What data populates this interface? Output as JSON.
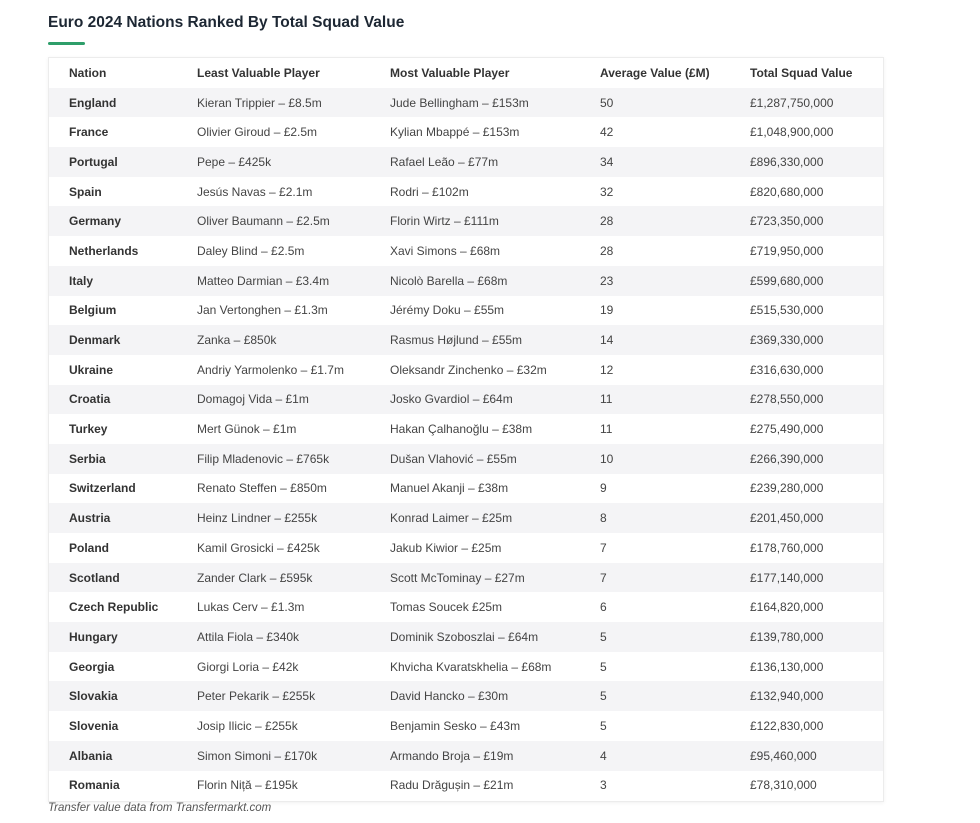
{
  "title": "Euro 2024 Nations Ranked By Total Squad Value",
  "accent_color": "#2e9e6a",
  "columns": [
    "Nation",
    "Least Valuable Player",
    "Most Valuable Player",
    "Average Value (£M)",
    "Total Squad Value"
  ],
  "rows": [
    [
      "England",
      "Kieran Trippier – £8.5m",
      "Jude Bellingham – £153m",
      "50",
      "£1,287,750,000"
    ],
    [
      "France",
      "Olivier Giroud – £2.5m",
      "Kylian Mbappé – £153m",
      "42",
      "£1,048,900,000"
    ],
    [
      "Portugal",
      "Pepe – £425k",
      "Rafael Leão – £77m",
      "34",
      "£896,330,000"
    ],
    [
      "Spain",
      "Jesús Navas – £2.1m",
      "Rodri – £102m",
      "32",
      "£820,680,000"
    ],
    [
      "Germany",
      "Oliver Baumann – £2.5m",
      "Florin Wirtz – £111m",
      "28",
      "£723,350,000"
    ],
    [
      "Netherlands",
      "Daley Blind – £2.5m",
      "Xavi Simons – £68m",
      "28",
      "£719,950,000"
    ],
    [
      "Italy",
      "Matteo Darmian – £3.4m",
      "Nicolò Barella – £68m",
      "23",
      "£599,680,000"
    ],
    [
      "Belgium",
      "Jan Vertonghen – £1.3m",
      "Jérémy Doku – £55m",
      "19",
      "£515,530,000"
    ],
    [
      "Denmark",
      "Zanka – £850k",
      "Rasmus Højlund – £55m",
      "14",
      "£369,330,000"
    ],
    [
      "Ukraine",
      "Andriy Yarmolenko – £1.7m",
      "Oleksandr Zinchenko – £32m",
      "12",
      "£316,630,000"
    ],
    [
      "Croatia",
      "Domagoj Vida – £1m",
      "Josko Gvardiol – £64m",
      "11",
      "£278,550,000"
    ],
    [
      "Turkey",
      "Mert Günok – £1m",
      "Hakan Çalhanoğlu – £38m",
      "11",
      "£275,490,000"
    ],
    [
      "Serbia",
      "Filip Mladenovic – £765k",
      "Dušan Vlahović – £55m",
      "10",
      "£266,390,000"
    ],
    [
      "Switzerland",
      "Renato Steffen – £850m",
      "Manuel Akanji – £38m",
      "9",
      "£239,280,000"
    ],
    [
      "Austria",
      "Heinz Lindner – £255k",
      "Konrad Laimer – £25m",
      "8",
      "£201,450,000"
    ],
    [
      "Poland",
      "Kamil Grosicki – £425k",
      "Jakub Kiwior – £25m",
      "7",
      "£178,760,000"
    ],
    [
      "Scotland",
      "Zander Clark – £595k",
      "Scott McTominay – £27m",
      "7",
      "£177,140,000"
    ],
    [
      "Czech Republic",
      "Lukas Cerv – £1.3m",
      "Tomas Soucek £25m",
      "6",
      "£164,820,000"
    ],
    [
      "Hungary",
      "Attila Fiola – £340k",
      "Dominik Szoboszlai – £64m",
      "5",
      "£139,780,000"
    ],
    [
      "Georgia",
      "Giorgi Loria – £42k",
      "Khvicha Kvaratskhelia – £68m",
      "5",
      "£136,130,000"
    ],
    [
      "Slovakia",
      "Peter Pekarik – £255k",
      "David Hancko – £30m",
      "5",
      "£132,940,000"
    ],
    [
      "Slovenia",
      "Josip Ilicic – £255k",
      "Benjamin Sesko – £43m",
      "5",
      "£122,830,000"
    ],
    [
      "Albania",
      "Simon Simoni – £170k",
      "Armando Broja – £19m",
      "4",
      "£95,460,000"
    ],
    [
      "Romania",
      "Florin Niță – £195k",
      "Radu Drăgușin – £21m",
      "3",
      "£78,310,000"
    ]
  ],
  "footnote": "Transfer value data from Transfermarkt.com"
}
